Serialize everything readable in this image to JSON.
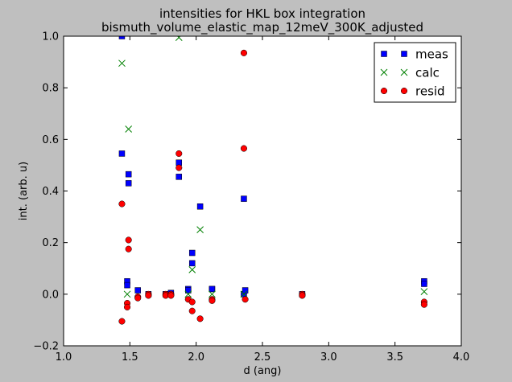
{
  "chart_data": {
    "type": "scatter",
    "title_line1": "intensities for HKL box integration",
    "title_line2": "bismuth_volume_elastic_map_12meV_300K_adjusted",
    "xlabel": "d (ang)",
    "ylabel": "int. (arb. u)",
    "xlim": [
      1.0,
      4.0
    ],
    "ylim": [
      -0.2,
      1.0
    ],
    "xticks": [
      1.0,
      1.5,
      2.0,
      2.5,
      3.0,
      3.5,
      4.0
    ],
    "xtick_labels": [
      "1.0",
      "1.5",
      "2.0",
      "2.5",
      "3.0",
      "3.5",
      "4.0"
    ],
    "yticks": [
      -0.2,
      0.0,
      0.2,
      0.4,
      0.6,
      0.8,
      1.0
    ],
    "ytick_labels": [
      "−0.2",
      "0.0",
      "0.2",
      "0.4",
      "0.6",
      "0.8",
      "1.0"
    ],
    "grid": false,
    "legend_position": "top-right",
    "series": [
      {
        "name": "meas",
        "marker": "square",
        "color": "#0000ff",
        "points": [
          [
            1.44,
            1.0
          ],
          [
            1.44,
            0.545
          ],
          [
            1.49,
            0.465
          ],
          [
            1.49,
            0.43
          ],
          [
            1.48,
            0.05
          ],
          [
            1.48,
            0.035
          ],
          [
            1.56,
            0.015
          ],
          [
            1.64,
            0.0
          ],
          [
            1.77,
            0.0
          ],
          [
            1.81,
            0.005
          ],
          [
            1.87,
            0.51
          ],
          [
            1.87,
            0.455
          ],
          [
            1.94,
            0.02
          ],
          [
            1.94,
            0.015
          ],
          [
            1.97,
            0.16
          ],
          [
            1.97,
            0.12
          ],
          [
            2.03,
            0.34
          ],
          [
            2.12,
            0.02
          ],
          [
            2.12,
            0.02
          ],
          [
            2.36,
            0.37
          ],
          [
            2.36,
            0.0
          ],
          [
            2.37,
            0.015
          ],
          [
            2.8,
            0.0
          ],
          [
            3.72,
            0.05
          ],
          [
            3.72,
            0.04
          ]
        ]
      },
      {
        "name": "calc",
        "marker": "x",
        "color": "#008000",
        "points": [
          [
            1.44,
            0.895
          ],
          [
            1.49,
            0.64
          ],
          [
            1.48,
            0.0
          ],
          [
            1.87,
            0.995
          ],
          [
            1.94,
            0.0
          ],
          [
            1.97,
            0.095
          ],
          [
            2.03,
            0.25
          ],
          [
            2.12,
            0.0
          ],
          [
            2.36,
            0.0
          ],
          [
            3.72,
            0.01
          ]
        ]
      },
      {
        "name": "resid",
        "marker": "circle",
        "color": "#ff0000",
        "points": [
          [
            1.44,
            0.35
          ],
          [
            1.44,
            -0.105
          ],
          [
            1.49,
            0.21
          ],
          [
            1.49,
            0.175
          ],
          [
            1.48,
            -0.035
          ],
          [
            1.48,
            -0.05
          ],
          [
            1.56,
            -0.01
          ],
          [
            1.56,
            -0.015
          ],
          [
            1.64,
            0.0
          ],
          [
            1.64,
            -0.005
          ],
          [
            1.77,
            0.0
          ],
          [
            1.77,
            -0.005
          ],
          [
            1.81,
            0.0
          ],
          [
            1.81,
            -0.005
          ],
          [
            1.87,
            0.545
          ],
          [
            1.87,
            0.49
          ],
          [
            1.94,
            -0.02
          ],
          [
            1.97,
            -0.03
          ],
          [
            1.97,
            -0.065
          ],
          [
            2.03,
            -0.095
          ],
          [
            2.12,
            -0.02
          ],
          [
            2.12,
            -0.025
          ],
          [
            2.36,
            0.935
          ],
          [
            2.36,
            0.565
          ],
          [
            2.37,
            -0.02
          ],
          [
            2.8,
            0.0
          ],
          [
            2.8,
            -0.005
          ],
          [
            3.72,
            -0.03
          ],
          [
            3.72,
            -0.04
          ]
        ]
      }
    ]
  }
}
